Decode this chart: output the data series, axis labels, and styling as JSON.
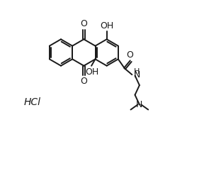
{
  "background_color": "#ffffff",
  "line_color": "#1a1a1a",
  "line_width": 1.4,
  "font_size": 9,
  "figsize": [
    3.12,
    2.62
  ],
  "dpi": 100,
  "xlim": [
    0,
    10
  ],
  "ylim": [
    -1,
    9
  ]
}
